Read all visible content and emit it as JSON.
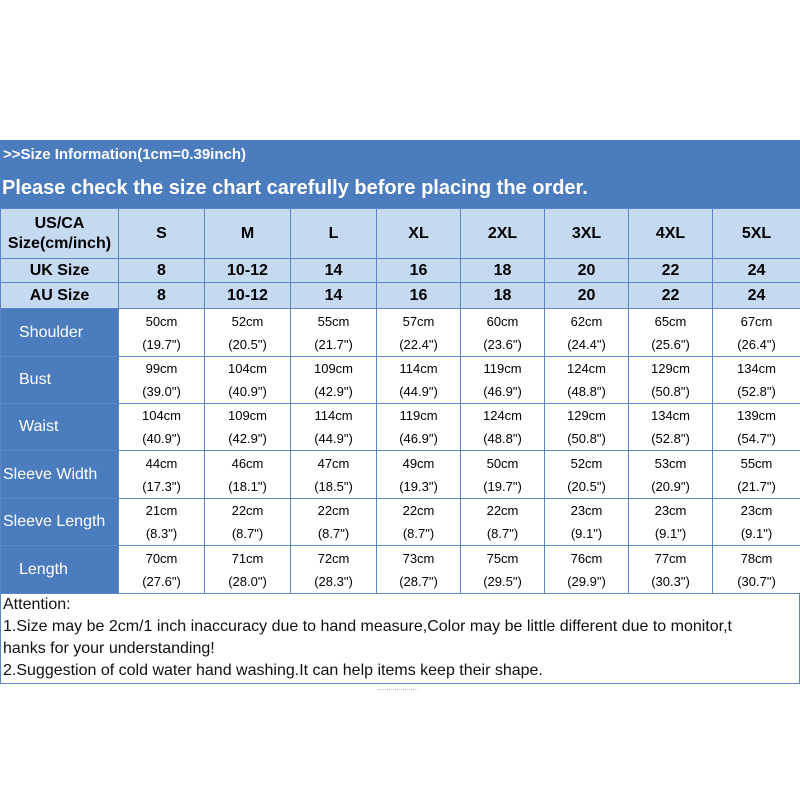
{
  "banner": {
    "line1": ">>Size Information(1cm=0.39inch)",
    "line2": "Please check the size chart carefully before placing the order."
  },
  "header": {
    "us_label_1": "US/CA",
    "us_label_2": "Size(cm/inch)",
    "us_sizes": [
      "S",
      "M",
      "L",
      "XL",
      "2XL",
      "3XL",
      "4XL",
      "5XL"
    ],
    "uk_label": "UK Size",
    "uk_sizes": [
      "8",
      "10-12",
      "14",
      "16",
      "18",
      "20",
      "22",
      "24"
    ],
    "au_label": "AU Size",
    "au_sizes": [
      "8",
      "10-12",
      "14",
      "16",
      "18",
      "20",
      "22",
      "24"
    ]
  },
  "rows": [
    {
      "label": "Shoulder",
      "cm": [
        "50cm",
        "52cm",
        "55cm",
        "57cm",
        "60cm",
        "62cm",
        "65cm",
        "67cm"
      ],
      "inch": [
        "(19.7\")",
        "(20.5\")",
        "(21.7\")",
        "(22.4\")",
        "(23.6\")",
        "(24.4\")",
        "(25.6\")",
        "(26.4\")"
      ]
    },
    {
      "label": "Bust",
      "cm": [
        "99cm",
        "104cm",
        "109cm",
        "114cm",
        "119cm",
        "124cm",
        "129cm",
        "134cm"
      ],
      "inch": [
        "(39.0\")",
        "(40.9\")",
        "(42.9\")",
        "(44.9\")",
        "(46.9\")",
        "(48.8\")",
        "(50.8\")",
        "(52.8\")"
      ]
    },
    {
      "label": "Waist",
      "cm": [
        "104cm",
        "109cm",
        "114cm",
        "119cm",
        "124cm",
        "129cm",
        "134cm",
        "139cm"
      ],
      "inch": [
        "(40.9\")",
        "(42.9\")",
        "(44.9\")",
        "(46.9\")",
        "(48.8\")",
        "(50.8\")",
        "(52.8\")",
        "(54.7\")"
      ]
    },
    {
      "label": "Sleeve Width",
      "cm": [
        "44cm",
        "46cm",
        "47cm",
        "49cm",
        "50cm",
        "52cm",
        "53cm",
        "55cm"
      ],
      "inch": [
        "(17.3\")",
        "(18.1\")",
        "(18.5\")",
        "(19.3\")",
        "(19.7\")",
        "(20.5\")",
        "(20.9\")",
        "(21.7\")"
      ]
    },
    {
      "label": "Sleeve Length",
      "cm": [
        "21cm",
        "22cm",
        "22cm",
        "22cm",
        "22cm",
        "23cm",
        "23cm",
        "23cm"
      ],
      "inch": [
        "(8.3\")",
        "(8.7\")",
        "(8.7\")",
        "(8.7\")",
        "(8.7\")",
        "(9.1\")",
        "(9.1\")",
        "(9.1\")"
      ]
    },
    {
      "label": "Length",
      "cm": [
        "70cm",
        "71cm",
        "72cm",
        "73cm",
        "75cm",
        "76cm",
        "77cm",
        "78cm"
      ],
      "inch": [
        "(27.6\")",
        "(28.0\")",
        "(28.3\")",
        "(28.7\")",
        "(29.5\")",
        "(29.9\")",
        "(30.3\")",
        "(30.7\")"
      ]
    }
  ],
  "attention": {
    "title": "Attention:",
    "line1": "1.Size may be 2cm/1 inch inaccuracy due to hand measure,Color may be little different due to monitor,t",
    "line2": "hanks for your understanding!",
    "line3": "2.Suggestion of cold water hand washing.It can help items keep their shape."
  },
  "colors": {
    "banner_blue": "#4b7cbd",
    "header_light_blue": "#c5d9f1",
    "border_blue": "#5a86c4"
  }
}
